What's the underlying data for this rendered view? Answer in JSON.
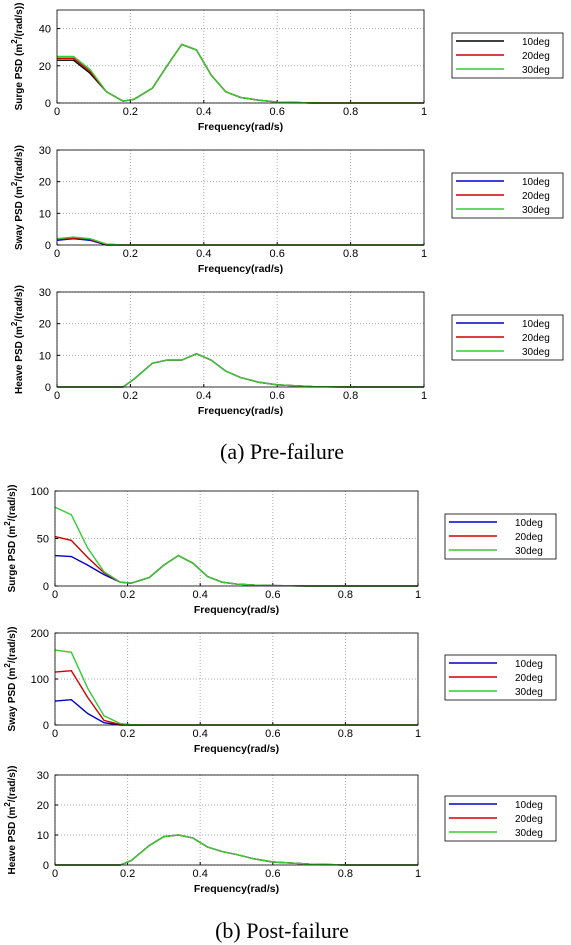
{
  "captions": [
    "(a) Pre-failure",
    "(b) Post-failure"
  ],
  "chart_data": [
    {
      "type": "line",
      "ylabel": [
        "Surge PSD (m",
        "2",
        "/(rad/s))"
      ],
      "xlabel": "Frequency(rad/s)",
      "x": [
        0,
        0.045,
        0.09,
        0.135,
        0.18,
        0.21,
        0.26,
        0.3,
        0.34,
        0.38,
        0.42,
        0.46,
        0.5,
        0.55,
        0.6,
        0.7,
        0.8,
        0.9,
        1
      ],
      "xlim": [
        0,
        1
      ],
      "xticks": [
        0,
        0.2,
        0.4,
        0.6,
        0.8,
        1
      ],
      "ylim": [
        0,
        50
      ],
      "yticks": [
        0,
        20,
        40
      ],
      "grid": true,
      "series": [
        {
          "name": "10deg",
          "color": "#000000",
          "values": [
            23,
            23,
            16,
            6,
            1,
            2,
            8,
            20,
            31.5,
            28.5,
            15,
            6,
            3,
            1.5,
            0.5,
            0,
            0,
            0,
            0
          ]
        },
        {
          "name": "20deg",
          "color": "#d00000",
          "values": [
            24,
            24,
            17,
            6,
            1,
            2,
            8,
            20,
            31.5,
            28.5,
            15,
            6,
            3,
            1.5,
            0.5,
            0,
            0,
            0,
            0
          ]
        },
        {
          "name": "30deg",
          "color": "#33cc33",
          "values": [
            25,
            25,
            18,
            6,
            1,
            2,
            8,
            20,
            31.5,
            28.5,
            15,
            6,
            3,
            1.5,
            0.5,
            0,
            0,
            0,
            0
          ]
        }
      ]
    },
    {
      "type": "line",
      "ylabel": [
        "Sway PSD (m",
        "2",
        "/(rad/s))"
      ],
      "xlabel": "Frequency(rad/s)",
      "x": [
        0,
        0.045,
        0.09,
        0.135,
        0.18,
        0.21,
        0.26,
        0.3,
        0.34,
        0.38,
        0.42,
        0.46,
        0.5,
        0.55,
        0.6,
        0.7,
        0.8,
        0.9,
        1
      ],
      "xlim": [
        0,
        1
      ],
      "xticks": [
        0,
        0.2,
        0.4,
        0.6,
        0.8,
        1
      ],
      "ylim": [
        0,
        30
      ],
      "yticks": [
        0,
        10,
        20,
        30
      ],
      "grid": true,
      "series": [
        {
          "name": "10deg",
          "color": "#0000cc",
          "values": [
            1.5,
            2,
            1.5,
            0,
            0,
            0,
            0,
            0,
            0,
            0,
            0,
            0,
            0,
            0,
            0,
            0,
            0,
            0,
            0
          ]
        },
        {
          "name": "20deg",
          "color": "#d00000",
          "values": [
            1.8,
            2.2,
            1.8,
            0.2,
            0,
            0,
            0,
            0,
            0,
            0,
            0,
            0,
            0,
            0,
            0,
            0,
            0,
            0,
            0
          ]
        },
        {
          "name": "30deg",
          "color": "#33cc33",
          "values": [
            2,
            2.5,
            2,
            0.3,
            0,
            0,
            0,
            0,
            0,
            0,
            0,
            0,
            0,
            0,
            0,
            0,
            0,
            0,
            0
          ]
        }
      ]
    },
    {
      "type": "line",
      "ylabel": [
        "Heave PSD (m",
        "2",
        "/(rad/s))"
      ],
      "xlabel": "Frequency(rad/s)",
      "x": [
        0,
        0.045,
        0.09,
        0.135,
        0.18,
        0.21,
        0.26,
        0.3,
        0.34,
        0.38,
        0.42,
        0.46,
        0.5,
        0.55,
        0.6,
        0.7,
        0.8,
        0.9,
        1
      ],
      "xlim": [
        0,
        1
      ],
      "xticks": [
        0,
        0.2,
        0.4,
        0.6,
        0.8,
        1
      ],
      "ylim": [
        0,
        30
      ],
      "yticks": [
        0,
        10,
        20,
        30
      ],
      "grid": true,
      "series": [
        {
          "name": "10deg",
          "color": "#0000cc",
          "values": [
            0,
            0,
            0,
            0,
            0,
            2.5,
            7.5,
            8.5,
            8.5,
            10.5,
            8.5,
            5,
            3,
            1.5,
            0.7,
            0.1,
            0,
            0,
            0
          ]
        },
        {
          "name": "20deg",
          "color": "#d00000",
          "values": [
            0,
            0,
            0,
            0,
            0,
            2.5,
            7.5,
            8.5,
            8.5,
            10.5,
            8.5,
            5,
            3,
            1.5,
            0.7,
            0.1,
            0,
            0,
            0
          ]
        },
        {
          "name": "30deg",
          "color": "#33cc33",
          "values": [
            0,
            0,
            0,
            0,
            0,
            2.5,
            7.5,
            8.5,
            8.5,
            10.5,
            8.5,
            5,
            3,
            1.5,
            0.7,
            0.1,
            0,
            0,
            0
          ]
        }
      ]
    },
    {
      "type": "line",
      "ylabel": [
        "Surge PSD (m",
        "2",
        "/(rad/s))"
      ],
      "xlabel": "Frequency(rad/s)",
      "x": [
        0,
        0.045,
        0.09,
        0.135,
        0.18,
        0.21,
        0.26,
        0.3,
        0.34,
        0.38,
        0.42,
        0.46,
        0.5,
        0.55,
        0.6,
        0.7,
        0.8,
        0.9,
        1
      ],
      "xlim": [
        0,
        1
      ],
      "xticks": [
        0,
        0.2,
        0.4,
        0.6,
        0.8,
        1
      ],
      "ylim": [
        0,
        100
      ],
      "yticks": [
        0,
        50,
        100
      ],
      "grid": true,
      "series": [
        {
          "name": "10deg",
          "color": "#0000cc",
          "values": [
            32,
            31,
            22,
            12,
            4,
            3,
            9,
            22,
            32,
            24,
            10,
            4,
            2,
            1,
            0.5,
            0,
            0,
            0,
            0
          ]
        },
        {
          "name": "20deg",
          "color": "#d00000",
          "values": [
            52,
            48,
            30,
            14,
            4,
            3,
            9,
            22,
            32,
            24,
            10,
            4,
            2,
            1,
            0.5,
            0,
            0,
            0,
            0
          ]
        },
        {
          "name": "30deg",
          "color": "#33cc33",
          "values": [
            83,
            75,
            40,
            15,
            4,
            3,
            9,
            22,
            32,
            24,
            10,
            4,
            2,
            1,
            0.5,
            0,
            0,
            0,
            0
          ]
        }
      ]
    },
    {
      "type": "line",
      "ylabel": [
        "Sway PSD (m",
        "2",
        "/(rad/s))"
      ],
      "xlabel": "Frequency(rad/s)",
      "x": [
        0,
        0.045,
        0.09,
        0.135,
        0.18,
        0.21,
        0.26,
        0.3,
        0.34,
        0.38,
        0.42,
        0.46,
        0.5,
        0.55,
        0.6,
        0.7,
        0.8,
        0.9,
        1
      ],
      "xlim": [
        0,
        1
      ],
      "xticks": [
        0,
        0.2,
        0.4,
        0.6,
        0.8,
        1
      ],
      "ylim": [
        0,
        200
      ],
      "yticks": [
        0,
        100,
        200
      ],
      "grid": true,
      "series": [
        {
          "name": "10deg",
          "color": "#0000cc",
          "values": [
            52,
            55,
            25,
            5,
            0,
            0,
            0,
            0,
            0,
            0,
            0,
            0,
            0,
            0,
            0,
            0,
            0,
            0,
            0
          ]
        },
        {
          "name": "20deg",
          "color": "#d00000",
          "values": [
            115,
            118,
            60,
            10,
            1,
            0,
            0,
            0,
            0,
            0,
            0,
            0,
            0,
            0,
            0,
            0,
            0,
            0,
            0
          ]
        },
        {
          "name": "30deg",
          "color": "#33cc33",
          "values": [
            163,
            158,
            80,
            20,
            3,
            1,
            0,
            0,
            0,
            0,
            0,
            0,
            0,
            0,
            0,
            0,
            0,
            0,
            0
          ]
        }
      ]
    },
    {
      "type": "line",
      "ylabel": [
        "Heave PSD (m",
        "2",
        "/(rad/s))"
      ],
      "xlabel": "Frequency(rad/s)",
      "x": [
        0,
        0.045,
        0.09,
        0.135,
        0.18,
        0.21,
        0.26,
        0.3,
        0.34,
        0.38,
        0.42,
        0.46,
        0.5,
        0.55,
        0.6,
        0.7,
        0.8,
        0.9,
        1
      ],
      "xlim": [
        0,
        1
      ],
      "xticks": [
        0,
        0.2,
        0.4,
        0.6,
        0.8,
        1
      ],
      "ylim": [
        0,
        30
      ],
      "yticks": [
        0,
        10,
        20,
        30
      ],
      "grid": true,
      "series": [
        {
          "name": "10deg",
          "color": "#0000cc",
          "values": [
            0,
            0,
            0,
            0,
            0,
            1.5,
            6.5,
            9.5,
            10,
            9,
            6,
            4.5,
            3.5,
            2,
            1,
            0.3,
            0,
            0,
            0
          ]
        },
        {
          "name": "20deg",
          "color": "#d00000",
          "values": [
            0,
            0,
            0,
            0,
            0,
            1.5,
            6.5,
            9.5,
            10,
            9,
            6,
            4.5,
            3.5,
            2,
            1,
            0.3,
            0,
            0,
            0
          ]
        },
        {
          "name": "30deg",
          "color": "#33cc33",
          "values": [
            0,
            0,
            0,
            0,
            0,
            1.5,
            6.5,
            9.5,
            10,
            9,
            6,
            4.5,
            3.5,
            2,
            1,
            0.3,
            0,
            0,
            0
          ]
        }
      ]
    }
  ]
}
